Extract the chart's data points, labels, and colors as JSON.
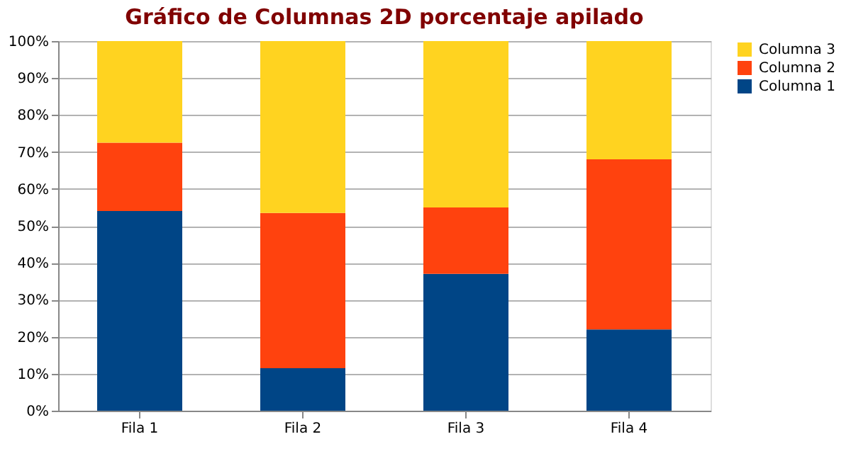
{
  "chart_data": {
    "type": "bar",
    "stacked": true,
    "title": "Gráfico de Columnas 2D porcentaje apilado",
    "categories": [
      "Fila 1",
      "Fila 2",
      "Fila 3",
      "Fila 4"
    ],
    "series": [
      {
        "name": "Columna 1",
        "color": "#004586",
        "values": [
          54,
          11.5,
          37,
          22
        ]
      },
      {
        "name": "Columna 2",
        "color": "#ff420e",
        "values": [
          18.5,
          42,
          18,
          46
        ]
      },
      {
        "name": "Columna 3",
        "color": "#ffd320",
        "values": [
          27.5,
          46.5,
          45,
          32
        ]
      }
    ],
    "ylim": [
      0,
      100
    ],
    "yticks": [
      {
        "value": 0,
        "label": "0%"
      },
      {
        "value": 10,
        "label": "10%"
      },
      {
        "value": 20,
        "label": "20%"
      },
      {
        "value": 30,
        "label": "30%"
      },
      {
        "value": 40,
        "label": "40%"
      },
      {
        "value": 50,
        "label": "50%"
      },
      {
        "value": 60,
        "label": "60%"
      },
      {
        "value": 70,
        "label": "70%"
      },
      {
        "value": 80,
        "label": "80%"
      },
      {
        "value": 90,
        "label": "90%"
      },
      {
        "value": 100,
        "label": "100%"
      }
    ],
    "grid": "y",
    "legend": "right"
  }
}
